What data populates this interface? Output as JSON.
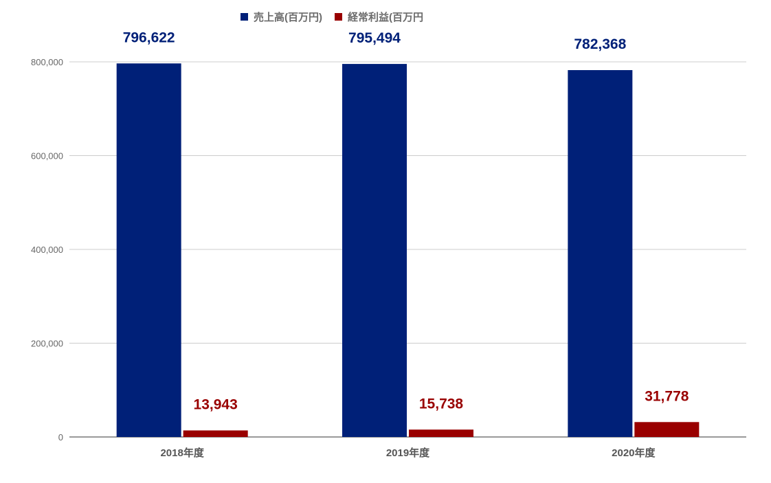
{
  "colors": {
    "sales": "#002078",
    "profit": "#990000",
    "grid": "#cccccc",
    "axis": "#333333",
    "tick_text": "#666666",
    "category_text": "#555555"
  },
  "legend": {
    "items": [
      {
        "label": "売上高(百万円)",
        "color": "#002078"
      },
      {
        "label": "経常利益(百万円",
        "color": "#990000"
      }
    ]
  },
  "chart_data": {
    "type": "bar",
    "categories": [
      "2018年度",
      "2019年度",
      "2020年度"
    ],
    "series": [
      {
        "name": "売上高(百万円)",
        "values": [
          796622,
          795494,
          782368
        ],
        "color": "#002078",
        "data_labels": [
          "796,622",
          "795,494",
          "782,368"
        ]
      },
      {
        "name": "経常利益(百万円",
        "values": [
          13943,
          15738,
          31778
        ],
        "color": "#990000",
        "data_labels": [
          "13,943",
          "15,738",
          "31,778"
        ]
      }
    ],
    "ylim": [
      0,
      800000
    ],
    "yticks": [
      0,
      200000,
      400000,
      600000,
      800000
    ],
    "ytick_labels": [
      "0",
      "200,000",
      "400,000",
      "600,000",
      "800,000"
    ],
    "grid": true,
    "legend_position": "top",
    "xlabel": "",
    "ylabel": "",
    "title": ""
  }
}
